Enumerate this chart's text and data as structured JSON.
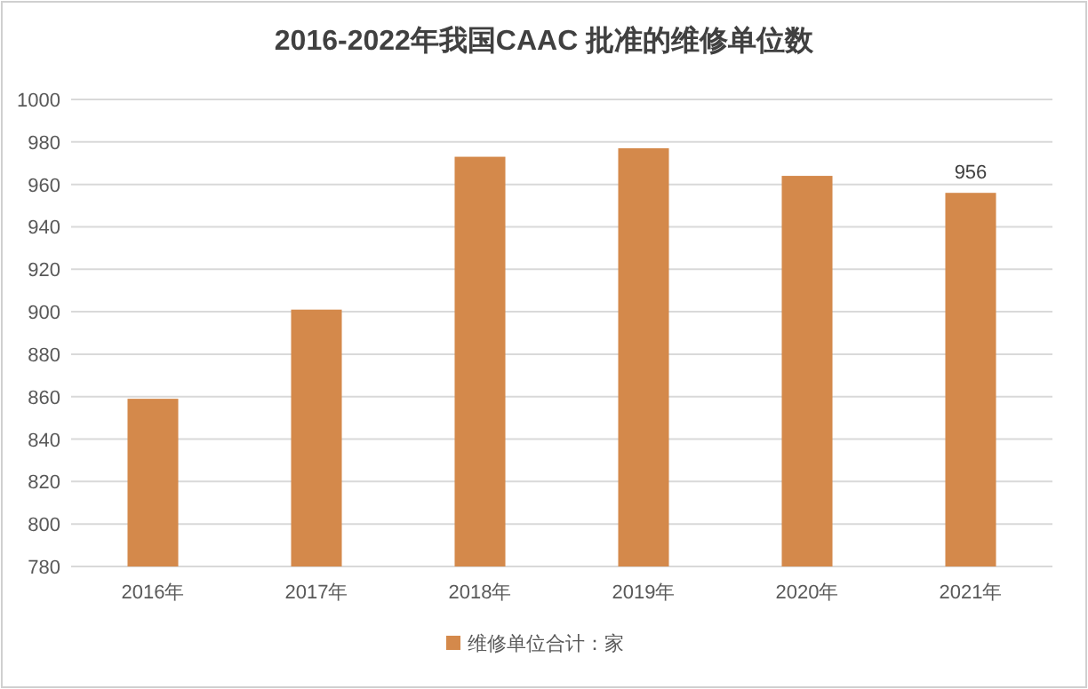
{
  "chart_data": {
    "type": "bar",
    "title": "2016-2022年我国CAAC 批准的维修单位数",
    "categories": [
      "2016年",
      "2017年",
      "2018年",
      "2019年",
      "2020年",
      "2021年"
    ],
    "series": [
      {
        "name": "维修单位合计：家",
        "color": "#d4894b",
        "values": [
          859,
          901,
          973,
          977,
          964,
          956
        ],
        "value_labels": [
          null,
          null,
          null,
          null,
          null,
          "956"
        ]
      }
    ],
    "ylim": [
      780,
      1000
    ],
    "yticks": [
      780,
      800,
      820,
      840,
      860,
      880,
      900,
      920,
      940,
      960,
      980,
      1000
    ],
    "grid": "y",
    "legend": "bottom"
  }
}
